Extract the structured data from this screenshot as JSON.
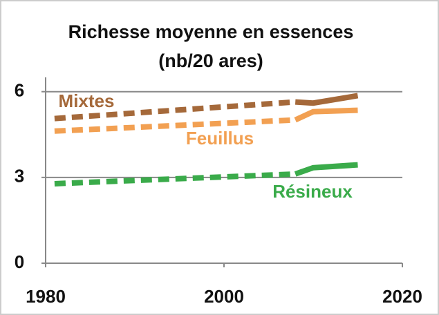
{
  "chart_data": {
    "type": "line",
    "title": [
      "Richesse moyenne en essences",
      "(nb/20 ares)"
    ],
    "x": [
      1981,
      2008,
      2010,
      2015
    ],
    "series": [
      {
        "name": "Mixtes",
        "color": "#a5693a",
        "values": [
          5.06,
          5.64,
          5.6,
          5.86
        ]
      },
      {
        "name": "Feuillus",
        "color": "#f2a052",
        "values": [
          4.62,
          5.01,
          5.3,
          5.35
        ]
      },
      {
        "name": "Résineux",
        "color": "#3aab4a",
        "values": [
          2.78,
          3.12,
          3.34,
          3.44
        ]
      }
    ],
    "dashed_until": 2008,
    "xlim": [
      1980,
      2020
    ],
    "xticks": [
      1980,
      2000,
      2020
    ],
    "ylim": [
      0,
      6.5
    ],
    "yticks": [
      0,
      3,
      6
    ],
    "grid": true
  }
}
